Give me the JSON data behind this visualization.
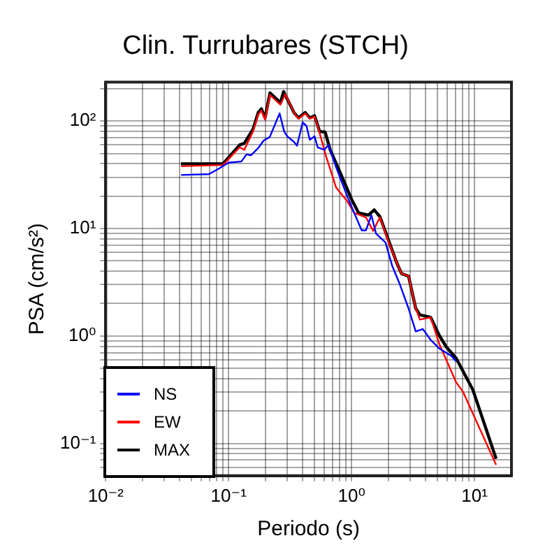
{
  "chart_data": {
    "type": "line",
    "title": "Clin. Turrubares (STCH)",
    "xlabel": "Periodo (s)",
    "ylabel": "PSA (cm/s²)",
    "log": "xy",
    "grid": true,
    "legend": "bottom left",
    "marker": "none",
    "line_style": "solid",
    "xlim": [
      0.01,
      20
    ],
    "ylim": [
      0.05,
      230
    ],
    "xticks": [
      {
        "value": 0.01,
        "label": "10⁻²"
      },
      {
        "value": 0.02,
        "label": null
      },
      {
        "value": 0.03,
        "label": null
      },
      {
        "value": 0.04,
        "label": null
      },
      {
        "value": 0.05,
        "label": null
      },
      {
        "value": 0.06,
        "label": null
      },
      {
        "value": 0.07,
        "label": null
      },
      {
        "value": 0.08,
        "label": null
      },
      {
        "value": 0.09,
        "label": null
      },
      {
        "value": 0.1,
        "label": "10⁻¹"
      },
      {
        "value": 0.2,
        "label": null
      },
      {
        "value": 0.3,
        "label": null
      },
      {
        "value": 0.4,
        "label": null
      },
      {
        "value": 0.5,
        "label": null
      },
      {
        "value": 0.6,
        "label": null
      },
      {
        "value": 0.7,
        "label": null
      },
      {
        "value": 0.8,
        "label": null
      },
      {
        "value": 0.9,
        "label": null
      },
      {
        "value": 1,
        "label": "10⁰"
      },
      {
        "value": 2,
        "label": null
      },
      {
        "value": 3,
        "label": null
      },
      {
        "value": 4,
        "label": null
      },
      {
        "value": 5,
        "label": null
      },
      {
        "value": 6,
        "label": null
      },
      {
        "value": 7,
        "label": null
      },
      {
        "value": 8,
        "label": null
      },
      {
        "value": 9,
        "label": null
      },
      {
        "value": 10,
        "label": "10¹"
      }
    ],
    "yticks": [
      {
        "value": 0.06,
        "label": null
      },
      {
        "value": 0.07,
        "label": null
      },
      {
        "value": 0.08,
        "label": null
      },
      {
        "value": 0.09,
        "label": null
      },
      {
        "value": 0.1,
        "label": "10⁻¹"
      },
      {
        "value": 0.2,
        "label": null
      },
      {
        "value": 0.3,
        "label": null
      },
      {
        "value": 0.4,
        "label": null
      },
      {
        "value": 0.5,
        "label": null
      },
      {
        "value": 0.6,
        "label": null
      },
      {
        "value": 0.7,
        "label": null
      },
      {
        "value": 0.8,
        "label": null
      },
      {
        "value": 0.9,
        "label": null
      },
      {
        "value": 1,
        "label": "10⁰"
      },
      {
        "value": 2,
        "label": null
      },
      {
        "value": 3,
        "label": null
      },
      {
        "value": 4,
        "label": null
      },
      {
        "value": 5,
        "label": null
      },
      {
        "value": 6,
        "label": null
      },
      {
        "value": 7,
        "label": null
      },
      {
        "value": 8,
        "label": null
      },
      {
        "value": 9,
        "label": null
      },
      {
        "value": 10,
        "label": "10¹"
      },
      {
        "value": 20,
        "label": null
      },
      {
        "value": 30,
        "label": null
      },
      {
        "value": 40,
        "label": null
      },
      {
        "value": 50,
        "label": null
      },
      {
        "value": 60,
        "label": null
      },
      {
        "value": 70,
        "label": null
      },
      {
        "value": 80,
        "label": null
      },
      {
        "value": 90,
        "label": null
      },
      {
        "value": 100,
        "label": "10²"
      },
      {
        "value": 200,
        "label": null
      }
    ],
    "series": [
      {
        "name": "NS",
        "color": "#0000ff",
        "x": [
          0.041,
          0.069,
          0.083,
          0.1,
          0.127,
          0.14,
          0.152,
          0.174,
          0.193,
          0.216,
          0.26,
          0.283,
          0.3,
          0.34,
          0.36,
          0.4,
          0.43,
          0.457,
          0.5,
          0.53,
          0.6,
          0.65,
          0.75,
          0.93,
          1.05,
          1.21,
          1.31,
          1.45,
          1.58,
          1.89,
          2.14,
          2.45,
          2.91,
          3.33,
          3.8,
          4.4,
          5.2,
          6.5,
          7.1
        ],
        "values": [
          31.5,
          32,
          36,
          41,
          42,
          49,
          48,
          56,
          66,
          71,
          118,
          80,
          72,
          64,
          59,
          97,
          90,
          67,
          72,
          57,
          54,
          60,
          37,
          19.5,
          14,
          9.6,
          9.6,
          13.3,
          9,
          7.4,
          4.5,
          3.1,
          1.8,
          1.1,
          1.16,
          0.92,
          0.76,
          0.65,
          0.58
        ]
      },
      {
        "name": "EW",
        "color": "#ff0000",
        "x": [
          0.041,
          0.09,
          0.123,
          0.134,
          0.158,
          0.174,
          0.185,
          0.198,
          0.217,
          0.264,
          0.289,
          0.34,
          0.37,
          0.42,
          0.457,
          0.5,
          0.53,
          0.62,
          0.75,
          0.93,
          1.05,
          1.31,
          1.5,
          1.7,
          1.98,
          2.33,
          2.55,
          2.91,
          3.33,
          3.6,
          4.4,
          5.2,
          7.1,
          8.1,
          15
        ],
        "values": [
          38,
          39,
          57,
          54,
          80,
          115,
          125,
          103,
          175,
          142,
          178,
          120,
          105,
          118,
          105,
          110,
          90,
          47,
          24,
          17.7,
          14,
          12.7,
          9.5,
          12.7,
          7.8,
          4.8,
          3.8,
          3.6,
          1.8,
          1.42,
          1.49,
          0.83,
          0.37,
          0.3,
          0.063
        ]
      },
      {
        "name": "MAX",
        "color": "#000000",
        "x": [
          0.041,
          0.09,
          0.123,
          0.134,
          0.158,
          0.174,
          0.185,
          0.198,
          0.217,
          0.264,
          0.28,
          0.34,
          0.37,
          0.42,
          0.457,
          0.5,
          0.55,
          0.61,
          0.67,
          0.85,
          1,
          1.14,
          1.37,
          1.53,
          1.7,
          2.03,
          2.33,
          2.55,
          2.91,
          3.33,
          3.6,
          4.4,
          5.2,
          5.9,
          7.1,
          9.7,
          15
        ],
        "values": [
          40,
          40,
          60,
          62,
          84,
          120,
          130,
          107,
          183,
          148,
          188,
          120,
          107,
          120,
          107,
          112,
          80,
          79,
          54,
          29,
          18.7,
          14,
          13.3,
          14.9,
          12.9,
          7.4,
          4.8,
          3.8,
          3.6,
          1.8,
          1.57,
          1.49,
          1,
          0.79,
          0.62,
          0.316,
          0.072
        ]
      }
    ]
  }
}
